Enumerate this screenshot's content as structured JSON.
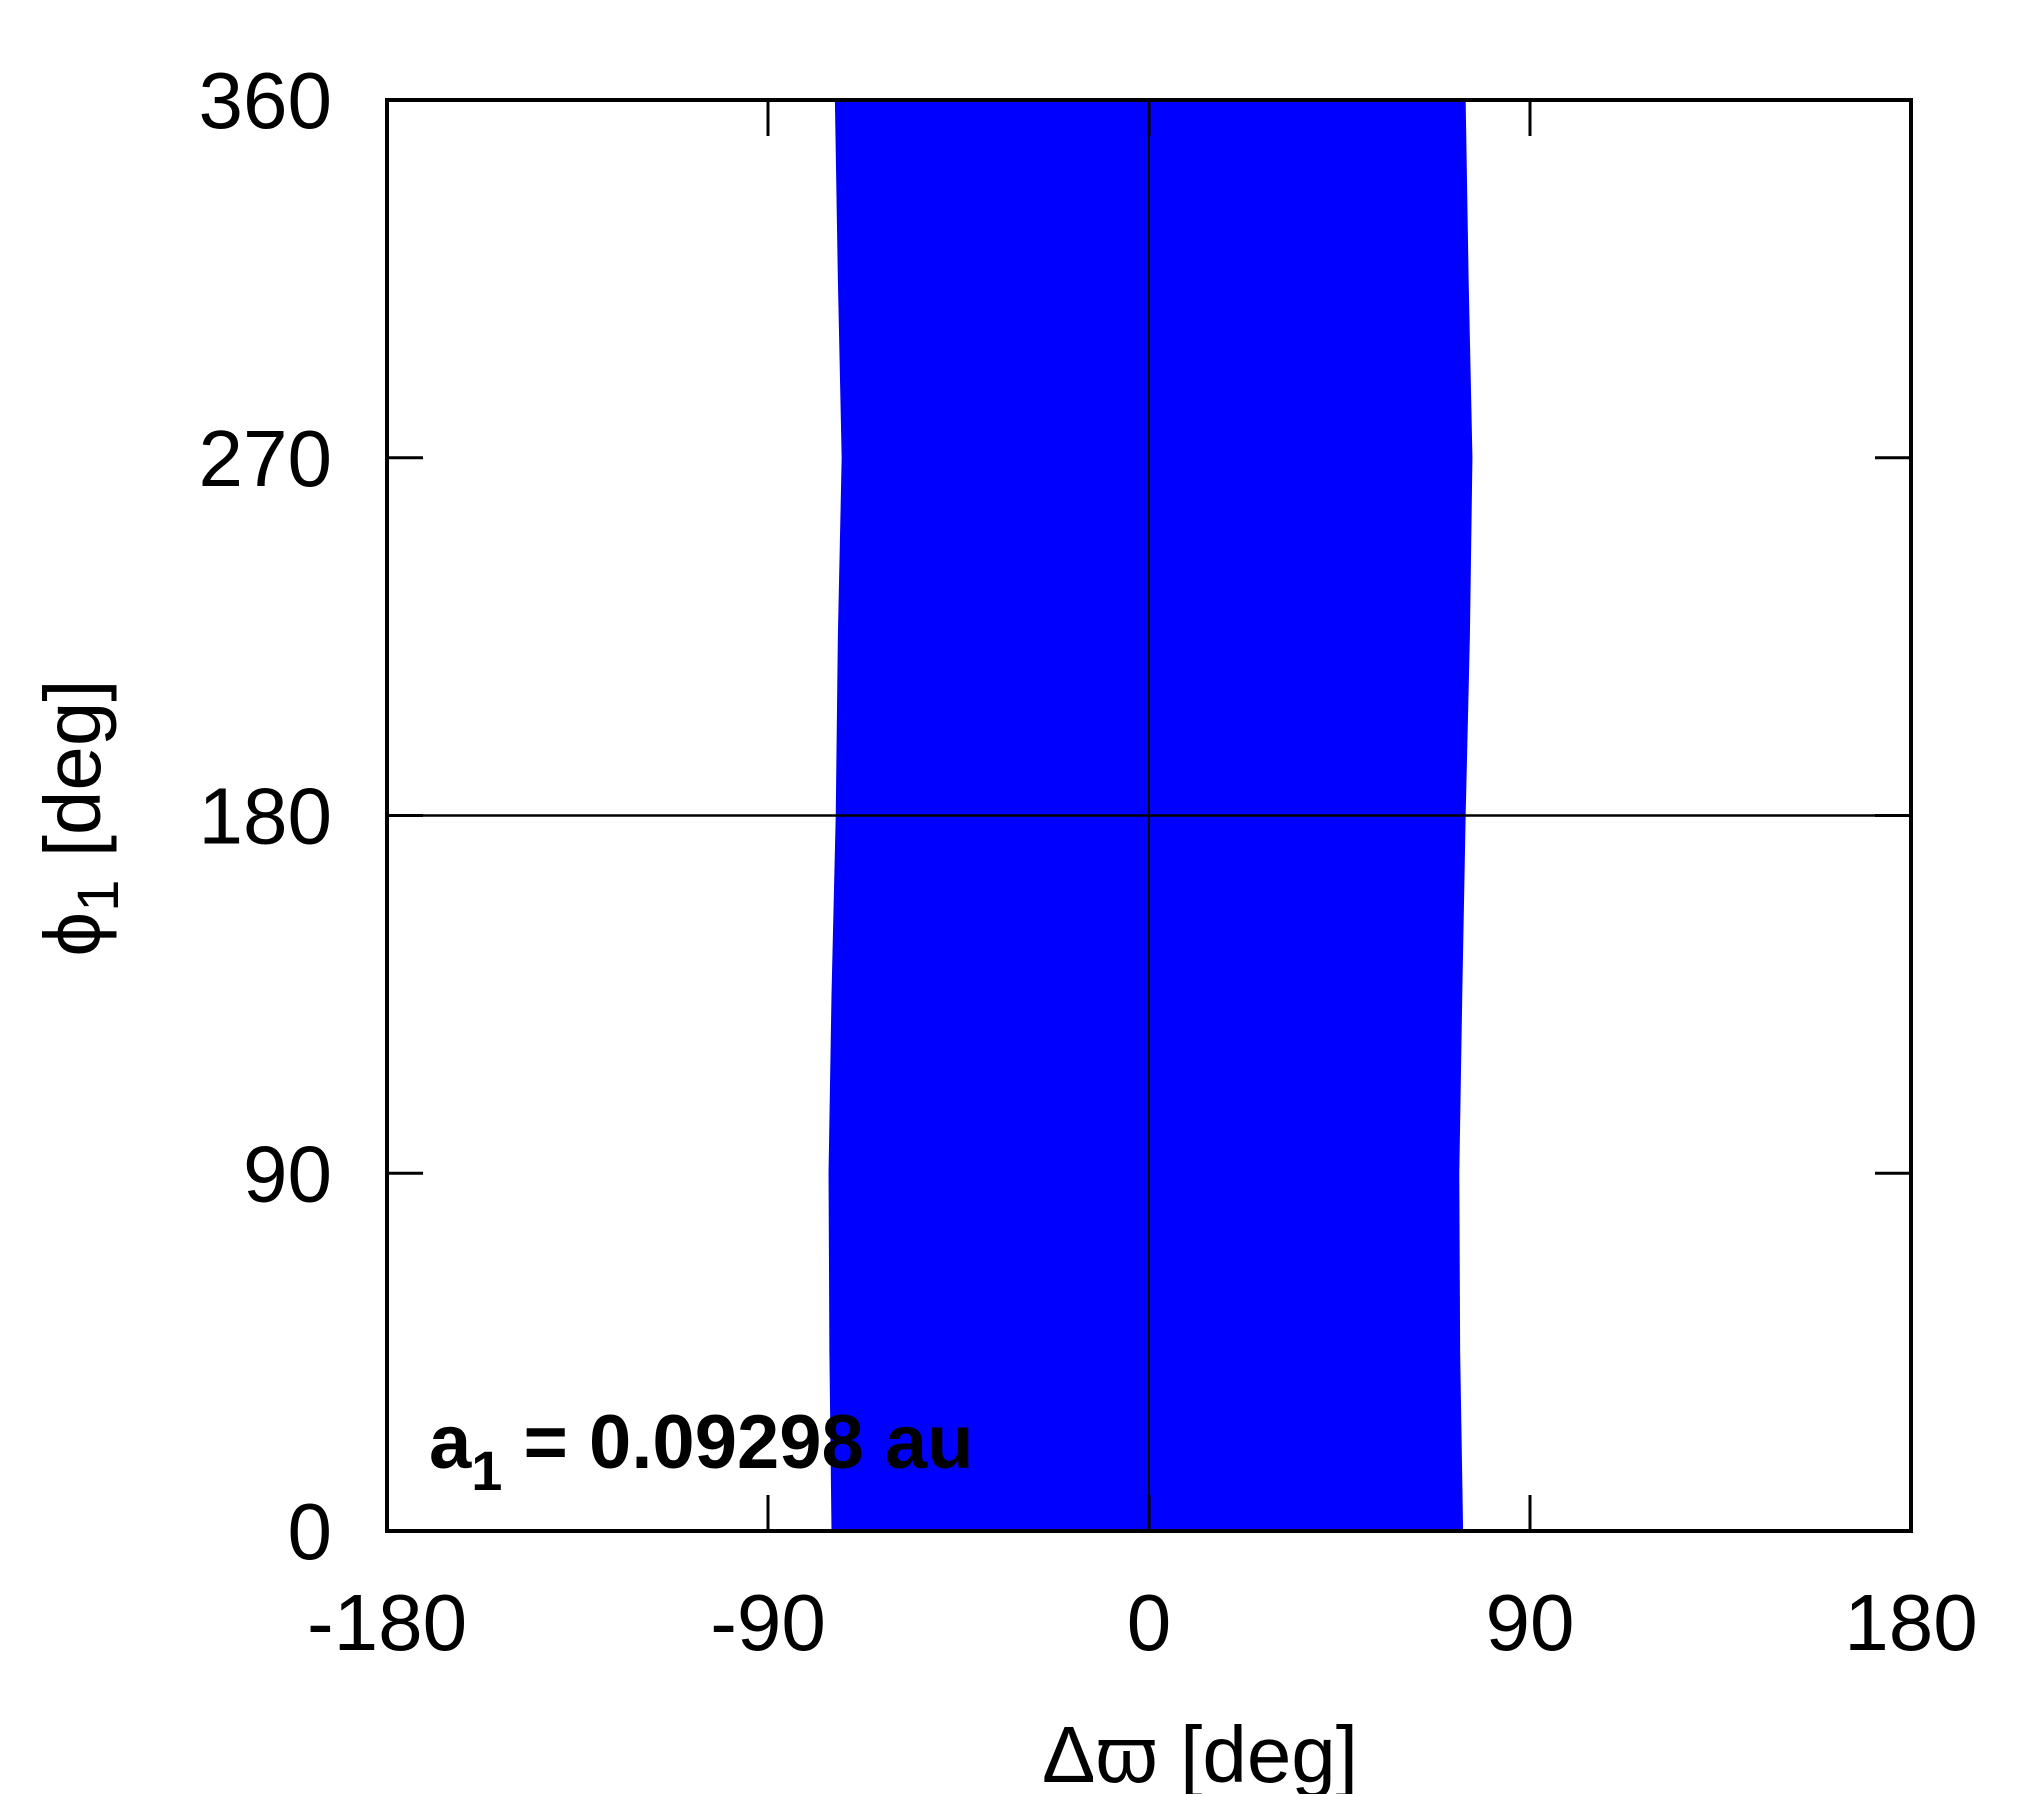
{
  "chart_data": {
    "type": "band",
    "color": "#0000ff",
    "y": [
      0,
      45,
      90,
      135,
      180,
      225,
      270,
      315,
      360
    ],
    "x_left": [
      -75,
      -75.5,
      -75.7,
      -75,
      -74,
      -73.5,
      -72.6,
      -73.5,
      -74.2
    ],
    "x_right": [
      74.2,
      73.5,
      73.3,
      74,
      74.8,
      75.8,
      76.4,
      75.5,
      74.8
    ],
    "xlim": [
      -180,
      180
    ],
    "xticks": [
      -180,
      -90,
      0,
      90,
      180
    ],
    "ylim": [
      0,
      360
    ],
    "yticks": [
      0,
      90,
      180,
      270,
      360
    ],
    "reference_lines": {
      "x": 0,
      "y": 180
    },
    "xlabel": "Δϖ [deg]",
    "ylabel": {
      "main": "ϕ",
      "sub": "1",
      "rest": " [deg]"
    },
    "annotation": {
      "main": "a",
      "sub": "1",
      "rest": " = 0.09298 au"
    }
  }
}
